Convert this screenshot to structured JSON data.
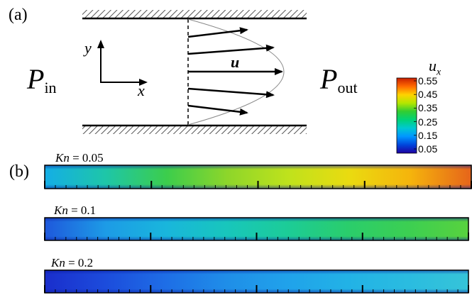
{
  "panel_labels": {
    "a": "(a)",
    "b": "(b)"
  },
  "diagram": {
    "inlet_symbol": "P",
    "inlet_sub": "in",
    "outlet_symbol": "P",
    "outlet_sub": "out",
    "axis_x": "x",
    "axis_y": "y",
    "velocity_symbol": "u"
  },
  "colorbar": {
    "title": "u",
    "title_sub": "x",
    "ticks": [
      "0.55",
      "0.45",
      "0.35",
      "0.25",
      "0.15",
      "0.05"
    ],
    "colors": [
      "#c81e00",
      "#ff6a00",
      "#ffd200",
      "#b4e600",
      "#32cd32",
      "#00d278",
      "#00c8d2",
      "#0096ff",
      "#0046dc",
      "#1e00a0"
    ]
  },
  "contours": [
    {
      "kn_label": "Kn",
      "kn_value": " = 0.05",
      "level": 0.05,
      "profile": [
        "#14aee6",
        "#1ec6a8",
        "#3ccd4c",
        "#8ed62a",
        "#bfe21c",
        "#eadb10",
        "#f5b40c",
        "#e6641a"
      ]
    },
    {
      "kn_label": "Kn",
      "kn_value": " = 0.1",
      "level": 0.1,
      "profile": [
        "#1e58dc",
        "#1d9be6",
        "#19b6dc",
        "#18c6bc",
        "#1ccc98",
        "#2acd6c",
        "#3ccf52",
        "#58d23e"
      ]
    },
    {
      "kn_label": "Kn",
      "kn_value": " = 0.2",
      "level": 0.2,
      "profile": [
        "#1a2ecc",
        "#1c4cdc",
        "#1e6ee6",
        "#1f8ee8",
        "#20a2ea",
        "#22b2e6",
        "#2abce0",
        "#36c4d8"
      ]
    }
  ]
}
